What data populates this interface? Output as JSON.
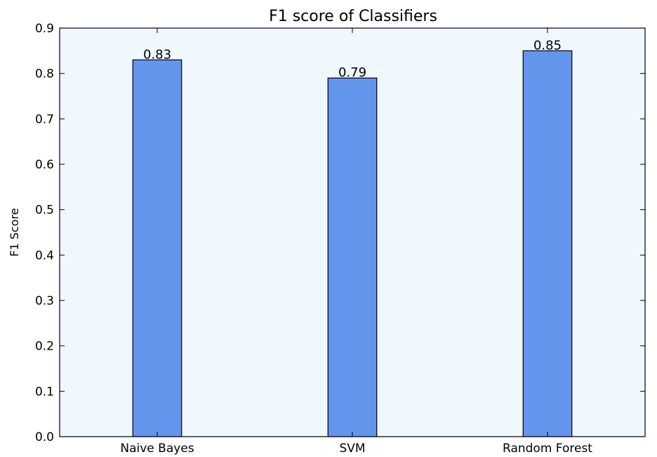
{
  "chart_data": {
    "type": "bar",
    "title": "F1 score of Classifiers",
    "xlabel": "",
    "ylabel": "F1 Score",
    "categories": [
      "Naive Bayes",
      "SVM",
      "Random Forest"
    ],
    "values": [
      0.83,
      0.79,
      0.85
    ],
    "data_labels": [
      "0.83",
      "0.79",
      "0.85"
    ],
    "ylim": [
      0,
      0.9
    ],
    "yticks": [
      0.0,
      0.1,
      0.2,
      0.3,
      0.4,
      0.5,
      0.6,
      0.7,
      0.8,
      0.9
    ],
    "ytick_labels": [
      "0.0",
      "0.1",
      "0.2",
      "0.3",
      "0.4",
      "0.5",
      "0.6",
      "0.7",
      "0.8",
      "0.9"
    ],
    "grid": false,
    "legend": "none",
    "colors": {
      "bar": "#6495ED",
      "plot_background": "#F0F8FF",
      "axis": "#000000"
    }
  }
}
